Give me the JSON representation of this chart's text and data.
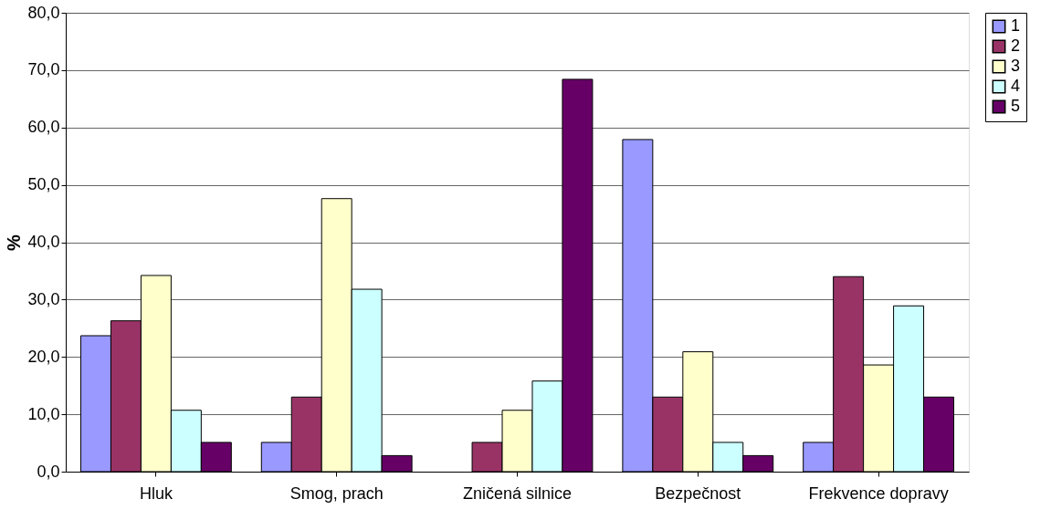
{
  "chart_data": {
    "type": "bar",
    "ylabel": "%",
    "categories": [
      "Hluk",
      "Smog, prach",
      "Zničená silnice",
      "Bezpečnost",
      "Frekvence dopravy"
    ],
    "series": [
      {
        "name": "1",
        "color": "#9999ff",
        "values": [
          23.7,
          5.1,
          null,
          57.9,
          5.1
        ]
      },
      {
        "name": "2",
        "color": "#993366",
        "values": [
          26.3,
          13.0,
          5.1,
          13.0,
          34.0
        ]
      },
      {
        "name": "3",
        "color": "#ffffcc",
        "values": [
          34.2,
          47.6,
          10.7,
          20.9,
          18.6
        ]
      },
      {
        "name": "4",
        "color": "#ccffff",
        "values": [
          10.7,
          31.8,
          15.8,
          5.1,
          28.9
        ]
      },
      {
        "name": "5",
        "color": "#660066",
        "values": [
          5.1,
          2.8,
          68.4,
          2.8,
          13.0
        ]
      }
    ],
    "ylim": [
      0,
      80
    ],
    "yticks": [
      {
        "value": 0,
        "label": "0,0"
      },
      {
        "value": 10,
        "label": "10,0"
      },
      {
        "value": 20,
        "label": "20,0"
      },
      {
        "value": 30,
        "label": "30,0"
      },
      {
        "value": 40,
        "label": "40,0"
      },
      {
        "value": 50,
        "label": "50,0"
      },
      {
        "value": 60,
        "label": "60,0"
      },
      {
        "value": 70,
        "label": "70,0"
      },
      {
        "value": 80,
        "label": "80,0"
      }
    ],
    "grid": "y",
    "legend": "right"
  }
}
